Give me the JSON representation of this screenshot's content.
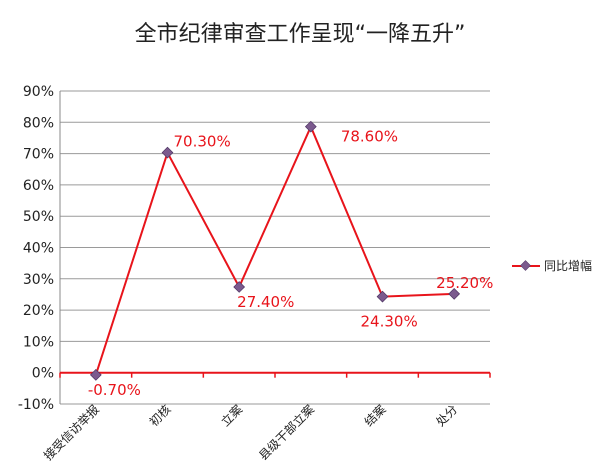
{
  "chart_data": {
    "type": "line",
    "title": "全市纪律审查工作呈现“一降五升”",
    "xlabel": "",
    "ylabel": "",
    "categories": [
      "接受信访举报",
      "初核",
      "立案",
      "县级干部立案",
      "结案",
      "处分"
    ],
    "series": [
      {
        "name": "同比增幅",
        "values": [
          -0.7,
          70.3,
          27.4,
          78.6,
          24.3,
          25.2
        ],
        "labels": [
          "-0.70%",
          "70.30%",
          "27.40%",
          "78.60%",
          "24.30%",
          "25.20%"
        ]
      }
    ],
    "ylim": [
      -10,
      90
    ],
    "yticks": [
      "-10%",
      "0%",
      "10%",
      "20%",
      "30%",
      "40%",
      "50%",
      "60%",
      "70%",
      "80%",
      "90%"
    ],
    "grid": true,
    "legend": "right",
    "colors": {
      "line": "#e8141b",
      "marker": "#7b5a8e",
      "zero_axis": "#e8141b",
      "label": "#e8141b"
    }
  }
}
